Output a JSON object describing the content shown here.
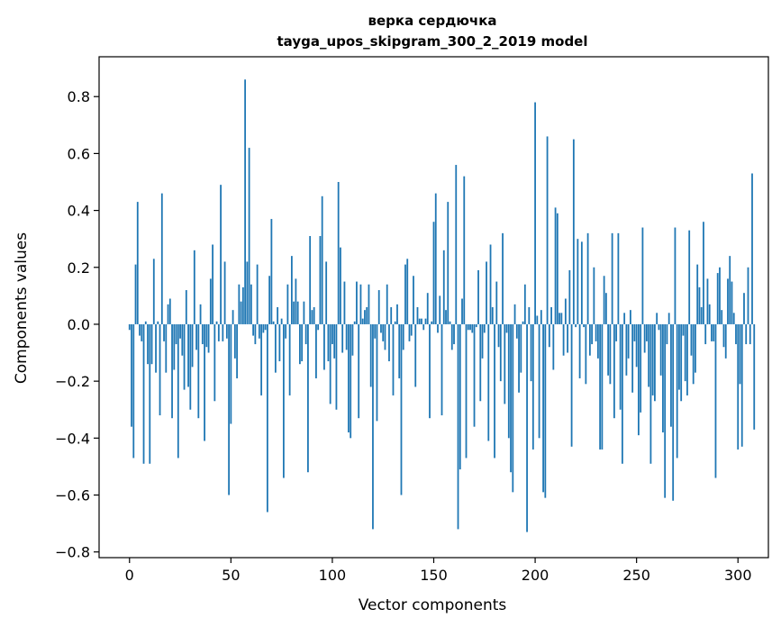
{
  "chart_data": {
    "type": "bar",
    "title": "верка сердючка",
    "subtitle": "tayga_upos_skipgram_300_2_2019 model",
    "xlabel": "Vector components",
    "ylabel": "Components values",
    "xlim": [
      -15,
      315
    ],
    "ylim": [
      -0.82,
      0.94
    ],
    "grid": false,
    "legend": "none",
    "bar_color": "#1f77b4",
    "xticks": [
      0,
      50,
      100,
      150,
      200,
      250,
      300
    ],
    "yticks": [
      -0.8,
      -0.6,
      -0.4,
      -0.2,
      0.0,
      0.2,
      0.4,
      0.6,
      0.8
    ],
    "ytick_labels": [
      "−0.8",
      "−0.6",
      "−0.4",
      "−0.2",
      "0.0",
      "0.2",
      "0.4",
      "0.6",
      "0.8"
    ],
    "values": [
      -0.02,
      -0.36,
      -0.47,
      0.21,
      0.43,
      -0.04,
      -0.06,
      -0.49,
      0.01,
      -0.14,
      -0.49,
      -0.14,
      0.23,
      -0.17,
      0.01,
      -0.32,
      0.46,
      -0.06,
      -0.17,
      0.07,
      0.09,
      -0.33,
      -0.16,
      -0.07,
      -0.47,
      -0.05,
      -0.11,
      -0.23,
      0.12,
      -0.22,
      -0.3,
      -0.15,
      0.26,
      -0.09,
      -0.33,
      0.07,
      -0.07,
      -0.41,
      -0.08,
      -0.1,
      0.16,
      0.28,
      -0.27,
      0.01,
      -0.06,
      0.49,
      -0.06,
      0.22,
      -0.05,
      -0.6,
      -0.35,
      0.05,
      -0.12,
      -0.19,
      0.14,
      0.08,
      0.13,
      0.86,
      0.22,
      0.62,
      0.14,
      -0.04,
      -0.07,
      0.21,
      -0.05,
      -0.25,
      -0.03,
      -0.02,
      -0.66,
      0.17,
      0.37,
      0.01,
      -0.17,
      0.06,
      -0.13,
      0.02,
      -0.54,
      -0.05,
      0.14,
      -0.25,
      0.24,
      0.08,
      0.16,
      0.08,
      -0.14,
      -0.13,
      0.08,
      -0.07,
      -0.52,
      0.31,
      0.05,
      0.06,
      -0.19,
      -0.02,
      0.31,
      0.45,
      -0.16,
      0.22,
      -0.13,
      -0.28,
      -0.07,
      -0.12,
      -0.3,
      0.5,
      0.27,
      -0.1,
      0.15,
      -0.09,
      -0.38,
      -0.4,
      -0.11,
      0.01,
      0.15,
      -0.33,
      0.14,
      0.02,
      0.05,
      0.06,
      0.14,
      -0.22,
      -0.72,
      -0.05,
      -0.34,
      0.12,
      -0.03,
      -0.06,
      -0.09,
      0.14,
      -0.13,
      0.06,
      -0.25,
      0.01,
      0.07,
      -0.19,
      -0.6,
      -0.09,
      0.21,
      0.23,
      -0.06,
      -0.04,
      0.17,
      -0.22,
      0.06,
      0.02,
      0.02,
      -0.02,
      0.02,
      0.11,
      -0.33,
      0.01,
      0.36,
      0.46,
      -0.03,
      0.1,
      -0.32,
      0.26,
      0.05,
      0.43,
      0.01,
      -0.09,
      -0.07,
      0.56,
      -0.72,
      -0.51,
      0.09,
      0.52,
      -0.47,
      -0.02,
      -0.02,
      -0.03,
      -0.36,
      -0.01,
      0.19,
      -0.27,
      -0.12,
      -0.03,
      0.22,
      -0.41,
      0.28,
      0.06,
      -0.47,
      0.15,
      -0.08,
      -0.2,
      0.32,
      -0.28,
      -0.03,
      -0.4,
      -0.52,
      -0.59,
      0.07,
      -0.05,
      -0.24,
      -0.17,
      0.01,
      0.14,
      -0.73,
      0.06,
      -0.2,
      -0.44,
      0.78,
      0.03,
      -0.4,
      0.05,
      -0.59,
      -0.61,
      0.66,
      -0.08,
      0.06,
      -0.16,
      0.41,
      0.39,
      0.04,
      0.04,
      -0.11,
      0.09,
      -0.1,
      0.19,
      -0.43,
      0.65,
      -0.01,
      0.3,
      -0.19,
      0.29,
      -0.01,
      -0.21,
      0.32,
      -0.11,
      -0.07,
      0.2,
      -0.06,
      -0.12,
      -0.44,
      -0.44,
      0.17,
      0.11,
      -0.18,
      -0.21,
      0.32,
      -0.33,
      -0.06,
      0.32,
      -0.3,
      -0.49,
      0.04,
      -0.18,
      -0.12,
      0.05,
      -0.24,
      -0.06,
      -0.15,
      -0.39,
      -0.31,
      0.34,
      -0.1,
      -0.06,
      -0.22,
      -0.49,
      -0.25,
      -0.27,
      0.04,
      -0.02,
      -0.18,
      -0.38,
      -0.61,
      -0.07,
      0.04,
      -0.36,
      -0.62,
      0.34,
      -0.47,
      -0.23,
      -0.27,
      -0.04,
      -0.2,
      -0.25,
      0.33,
      -0.11,
      -0.21,
      -0.17,
      0.21,
      0.13,
      0.06,
      0.36,
      -0.07,
      0.16,
      0.07,
      -0.06,
      -0.06,
      -0.54,
      0.18,
      0.2,
      0.05,
      -0.08,
      -0.12,
      0.16,
      0.24,
      0.15,
      0.04,
      -0.07,
      -0.44,
      -0.21,
      -0.43,
      0.11,
      -0.07,
      0.2,
      -0.07,
      0.53,
      -0.37
    ]
  }
}
